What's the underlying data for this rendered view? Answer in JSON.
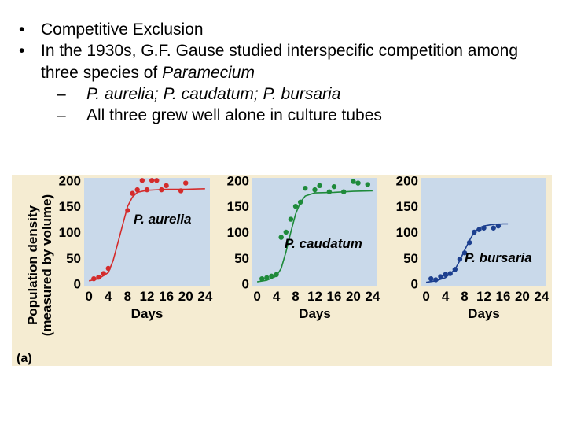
{
  "bullets": [
    {
      "level": 1,
      "marker": "•",
      "text": "Competitive Exclusion"
    },
    {
      "level": 1,
      "marker": "•",
      "text_plain": "In the 1930s, G.F. Gause studied interspecific competition among three species of ",
      "text_italic": "Paramecium"
    },
    {
      "level": 2,
      "marker": "–",
      "text": "P. aurelia; P. caudatum; P. bursaria",
      "italic": true
    },
    {
      "level": 2,
      "marker": "–",
      "text": "All three grew well alone in culture tubes"
    }
  ],
  "figure": {
    "panel_label": "(a)",
    "ylabel_line1": "Population density",
    "ylabel_line2": "(measured by volume)",
    "colors": {
      "background": "#f5ecd2",
      "plot_bg": "#c9d9ea"
    }
  },
  "chart_data": [
    {
      "type": "scatter",
      "series_label": "P. aurelia",
      "color": "#d42b2b",
      "xlabel": "Days",
      "ylabel": "",
      "xlim": [
        -1,
        25
      ],
      "ylim": [
        -5,
        205
      ],
      "xticks": [
        0,
        4,
        8,
        12,
        16,
        20,
        24
      ],
      "yticks": [
        0,
        50,
        100,
        150,
        200
      ],
      "grid": false,
      "points": [
        [
          1,
          10
        ],
        [
          2,
          13
        ],
        [
          3,
          20
        ],
        [
          4,
          30
        ],
        [
          8,
          142
        ],
        [
          9,
          175
        ],
        [
          10,
          182
        ],
        [
          11,
          200
        ],
        [
          12,
          182
        ],
        [
          13,
          200
        ],
        [
          14,
          200
        ],
        [
          15,
          182
        ],
        [
          16,
          190
        ],
        [
          19,
          180
        ],
        [
          20,
          195
        ]
      ],
      "fit": [
        [
          0,
          6
        ],
        [
          2,
          10
        ],
        [
          4,
          22
        ],
        [
          5,
          45
        ],
        [
          6,
          80
        ],
        [
          7,
          115
        ],
        [
          8,
          150
        ],
        [
          9,
          168
        ],
        [
          10,
          177
        ],
        [
          12,
          181
        ],
        [
          16,
          183
        ],
        [
          20,
          183
        ],
        [
          24,
          184
        ]
      ]
    },
    {
      "type": "scatter",
      "series_label": "P. caudatum",
      "color": "#1e8a3a",
      "xlabel": "Days",
      "ylabel": "",
      "xlim": [
        -1,
        25
      ],
      "ylim": [
        -5,
        205
      ],
      "xticks": [
        0,
        4,
        8,
        12,
        16,
        20,
        24
      ],
      "yticks": [
        0,
        50,
        100,
        150,
        200
      ],
      "grid": false,
      "points": [
        [
          1,
          10
        ],
        [
          2,
          12
        ],
        [
          3,
          15
        ],
        [
          4,
          18
        ],
        [
          5,
          90
        ],
        [
          6,
          100
        ],
        [
          7,
          125
        ],
        [
          8,
          150
        ],
        [
          9,
          158
        ],
        [
          10,
          185
        ],
        [
          12,
          182
        ],
        [
          13,
          190
        ],
        [
          15,
          178
        ],
        [
          16,
          188
        ],
        [
          18,
          178
        ],
        [
          20,
          198
        ],
        [
          21,
          195
        ],
        [
          23,
          192
        ]
      ],
      "fit": [
        [
          0,
          4
        ],
        [
          2,
          7
        ],
        [
          4,
          15
        ],
        [
          5,
          30
        ],
        [
          6,
          62
        ],
        [
          7,
          100
        ],
        [
          8,
          135
        ],
        [
          9,
          158
        ],
        [
          10,
          170
        ],
        [
          12,
          176
        ],
        [
          16,
          177
        ],
        [
          20,
          179
        ],
        [
          24,
          180
        ]
      ]
    },
    {
      "type": "scatter",
      "series_label": "P. bursaria",
      "color": "#1c3f8f",
      "xlabel": "Days",
      "ylabel": "",
      "xlim": [
        -1,
        25
      ],
      "ylim": [
        -5,
        205
      ],
      "xticks": [
        0,
        4,
        8,
        12,
        16,
        20,
        24
      ],
      "yticks": [
        0,
        50,
        100,
        150,
        200
      ],
      "grid": false,
      "points": [
        [
          1,
          10
        ],
        [
          2,
          8
        ],
        [
          3,
          14
        ],
        [
          4,
          18
        ],
        [
          5,
          20
        ],
        [
          6,
          28
        ],
        [
          7,
          48
        ],
        [
          8,
          60
        ],
        [
          9,
          80
        ],
        [
          10,
          100
        ],
        [
          11,
          105
        ],
        [
          12,
          108
        ],
        [
          14,
          108
        ],
        [
          15,
          112
        ]
      ],
      "fit": [
        [
          0,
          3
        ],
        [
          2,
          6
        ],
        [
          4,
          12
        ],
        [
          6,
          28
        ],
        [
          7,
          45
        ],
        [
          8,
          65
        ],
        [
          9,
          84
        ],
        [
          10,
          100
        ],
        [
          11,
          108
        ],
        [
          12,
          112
        ],
        [
          14,
          115
        ],
        [
          16,
          116
        ],
        [
          17,
          116
        ]
      ]
    }
  ]
}
